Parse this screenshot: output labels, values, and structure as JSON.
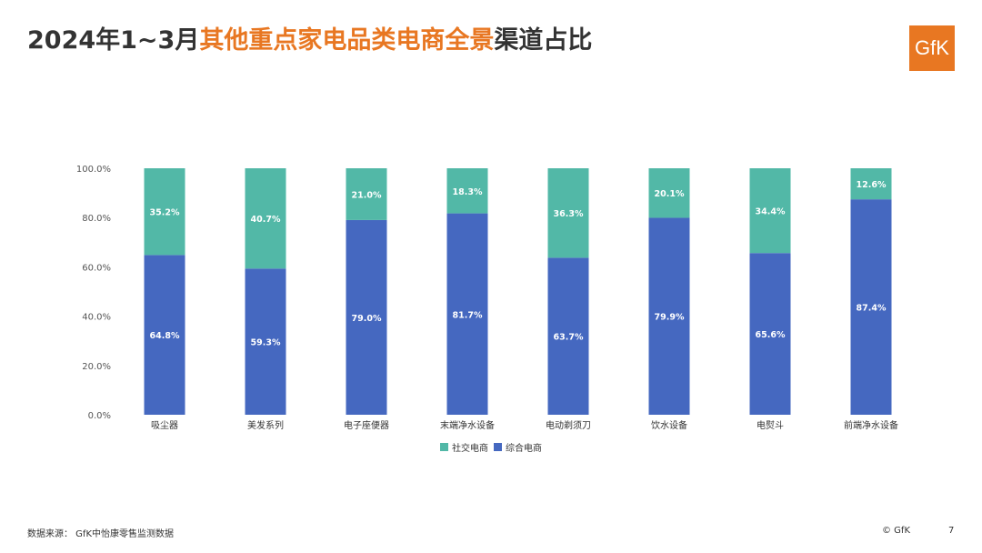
{
  "header": {
    "title_prefix": "2024年1~3月",
    "title_highlight": "其他重点家电品类电商全景",
    "title_suffix": "渠道占比",
    "logo_text": "GfK"
  },
  "colors": {
    "accent": "#E87722",
    "social": "#52B8A7",
    "comprehensive": "#4568C0"
  },
  "chart_data": {
    "type": "bar",
    "stacked": true,
    "categories": [
      "吸尘器",
      "美发系列",
      "电子座便器",
      "末端净水设备",
      "电动剃须刀",
      "饮水设备",
      "电熨斗",
      "前端净水设备"
    ],
    "series": [
      {
        "name": "综合电商",
        "values": [
          64.8,
          59.3,
          79.0,
          81.7,
          63.7,
          79.9,
          65.6,
          87.4
        ],
        "labels": [
          "64.8%",
          "59.3%",
          "79.0%",
          "81.7%",
          "63.7%",
          "79.9%",
          "65.6%",
          "87.4%"
        ]
      },
      {
        "name": "社交电商",
        "values": [
          35.2,
          40.7,
          21.0,
          18.3,
          36.3,
          20.1,
          34.4,
          12.6
        ],
        "labels": [
          "35.2%",
          "40.7%",
          "21.0%",
          "18.3%",
          "36.3%",
          "20.1%",
          "34.4%",
          "12.6%"
        ]
      }
    ],
    "yticks": [
      "0.0%",
      "20.0%",
      "40.0%",
      "60.0%",
      "80.0%",
      "100.0%"
    ],
    "ylim": [
      0,
      100
    ],
    "grid": false,
    "legend_position": "bottom"
  },
  "legend": [
    {
      "label": "社交电商",
      "color": "#52B8A7"
    },
    {
      "label": "综合电商",
      "color": "#4568C0"
    }
  ],
  "footer": {
    "source": "数据来源： GfK中怡康零售监测数据",
    "copyright": "© GfK",
    "page_number": "7"
  }
}
